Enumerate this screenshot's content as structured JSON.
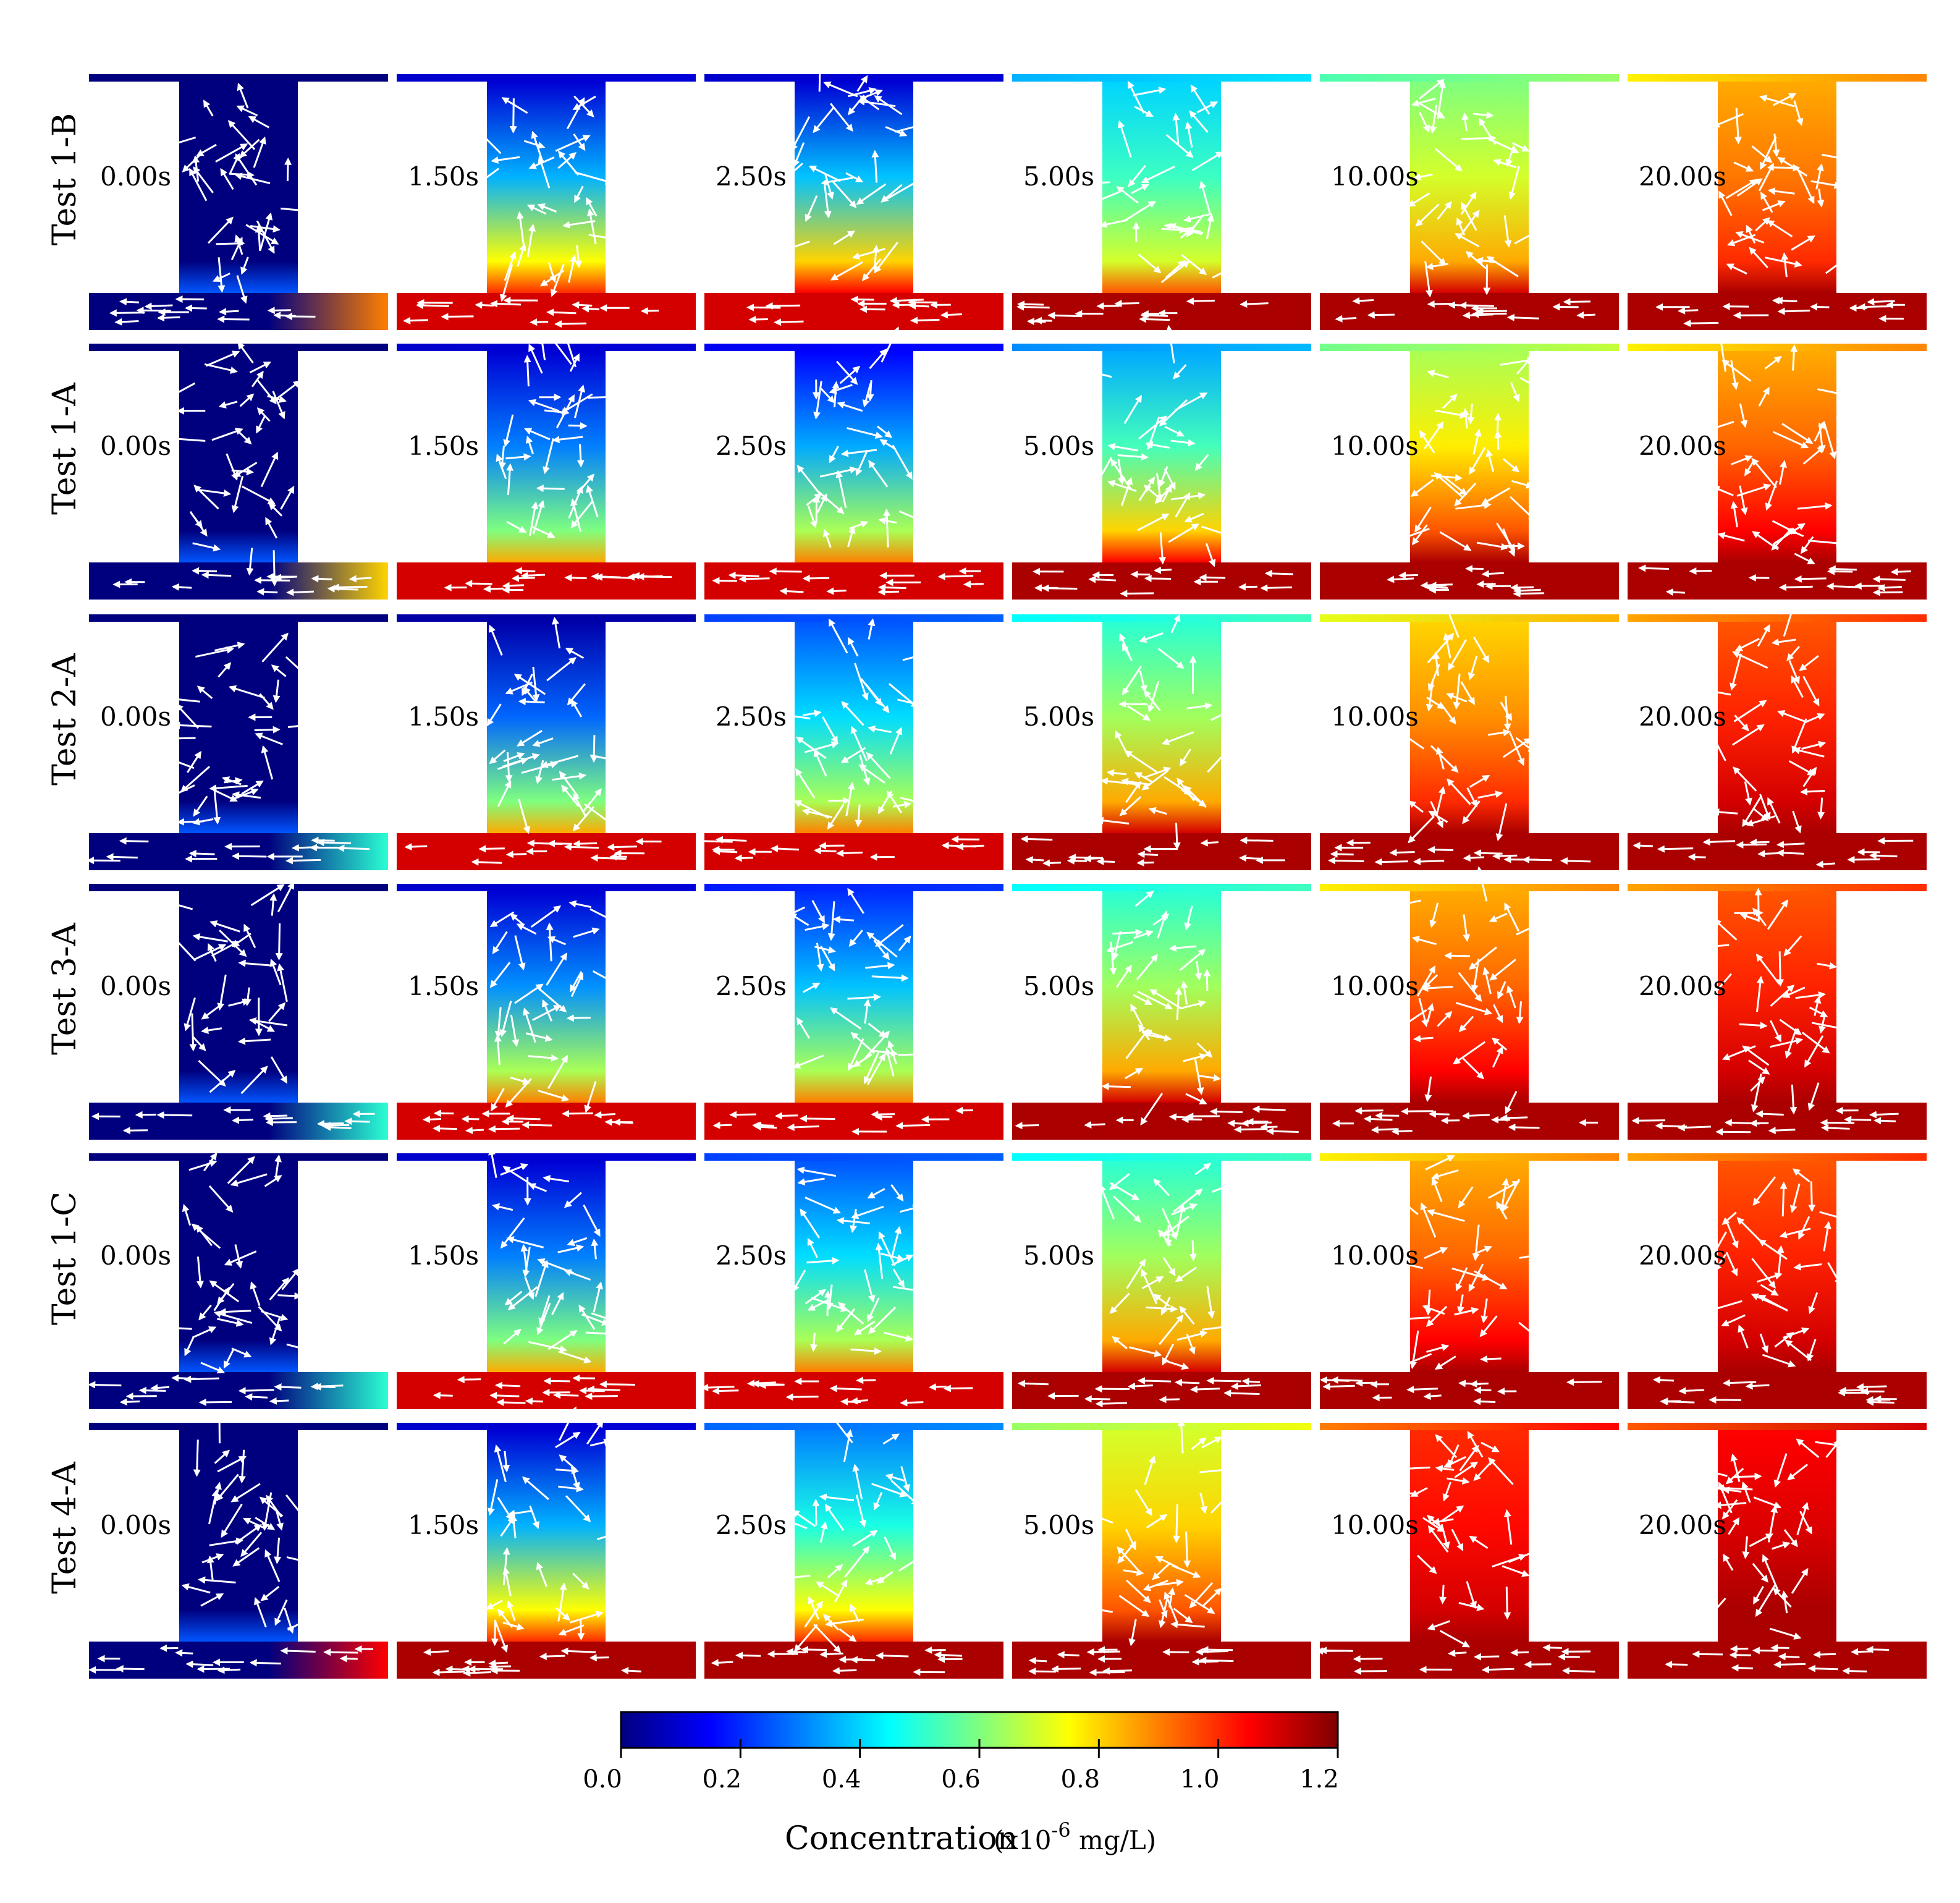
{
  "rows": [
    {
      "label": "Test 1-B",
      "key": "t1b"
    },
    {
      "label": "Test 1-A",
      "key": "t1a"
    },
    {
      "label": "Test 2-A",
      "key": "t2a"
    },
    {
      "label": "Test 3-A",
      "key": "t3a"
    },
    {
      "label": "Test 1-C",
      "key": "t1c"
    },
    {
      "label": "Test 4-A",
      "key": "t4a"
    }
  ],
  "times": [
    "0.00s",
    "1.50s",
    "2.50s",
    "5.00s",
    "10.00s",
    "20.00s"
  ],
  "concentration_fields": {
    "description_units": "normalized concentration 0-1.2 (x10^-6 mg/L)",
    "t1b": [
      {
        "cavity_bottom": 0.0,
        "cavity_top": 0.0,
        "channel": 0.0,
        "channel_inlet": 0.9
      },
      {
        "cavity_bottom": 0.75,
        "cavity_top": 0.1,
        "channel": 1.1,
        "channel_inlet": 1.1
      },
      {
        "cavity_bottom": 0.8,
        "cavity_top": 0.1,
        "channel": 1.1,
        "channel_inlet": 1.1
      },
      {
        "cavity_bottom": 0.7,
        "cavity_top": 0.4,
        "channel": 1.15,
        "channel_inlet": 1.15
      },
      {
        "cavity_bottom": 0.85,
        "cavity_top": 0.6,
        "channel": 1.15,
        "channel_inlet": 1.15
      },
      {
        "cavity_bottom": 1.0,
        "cavity_top": 0.85,
        "channel": 1.15,
        "channel_inlet": 1.15
      }
    ],
    "t1a": [
      {
        "cavity_bottom": 0.0,
        "cavity_top": 0.0,
        "channel": 0.0,
        "channel_inlet": 0.8
      },
      {
        "cavity_bottom": 0.6,
        "cavity_top": 0.1,
        "channel": 1.1,
        "channel_inlet": 1.1
      },
      {
        "cavity_bottom": 0.65,
        "cavity_top": 0.15,
        "channel": 1.1,
        "channel_inlet": 1.1
      },
      {
        "cavity_bottom": 0.8,
        "cavity_top": 0.35,
        "channel": 1.15,
        "channel_inlet": 1.15
      },
      {
        "cavity_bottom": 0.95,
        "cavity_top": 0.65,
        "channel": 1.15,
        "channel_inlet": 1.15
      },
      {
        "cavity_bottom": 1.05,
        "cavity_top": 0.85,
        "channel": 1.15,
        "channel_inlet": 1.15
      }
    ],
    "t2a": [
      {
        "cavity_bottom": 0.0,
        "cavity_top": 0.0,
        "channel": 0.0,
        "channel_inlet": 0.5
      },
      {
        "cavity_bottom": 0.6,
        "cavity_top": 0.05,
        "channel": 1.1,
        "channel_inlet": 1.1
      },
      {
        "cavity_bottom": 0.65,
        "cavity_top": 0.25,
        "channel": 1.1,
        "channel_inlet": 1.1
      },
      {
        "cavity_bottom": 0.85,
        "cavity_top": 0.5,
        "channel": 1.15,
        "channel_inlet": 1.15
      },
      {
        "cavity_bottom": 1.0,
        "cavity_top": 0.8,
        "channel": 1.15,
        "channel_inlet": 1.15
      },
      {
        "cavity_bottom": 1.1,
        "cavity_top": 0.95,
        "channel": 1.15,
        "channel_inlet": 1.15
      }
    ],
    "t3a": [
      {
        "cavity_bottom": 0.0,
        "cavity_top": 0.0,
        "channel": 0.0,
        "channel_inlet": 0.5
      },
      {
        "cavity_bottom": 0.65,
        "cavity_top": 0.1,
        "channel": 1.1,
        "channel_inlet": 1.1
      },
      {
        "cavity_bottom": 0.65,
        "cavity_top": 0.2,
        "channel": 1.1,
        "channel_inlet": 1.1
      },
      {
        "cavity_bottom": 0.85,
        "cavity_top": 0.5,
        "channel": 1.15,
        "channel_inlet": 1.15
      },
      {
        "cavity_bottom": 1.05,
        "cavity_top": 0.85,
        "channel": 1.15,
        "channel_inlet": 1.15
      },
      {
        "cavity_bottom": 1.1,
        "cavity_top": 0.95,
        "channel": 1.15,
        "channel_inlet": 1.15
      }
    ],
    "t1c": [
      {
        "cavity_bottom": 0.0,
        "cavity_top": 0.0,
        "channel": 0.0,
        "channel_inlet": 0.5
      },
      {
        "cavity_bottom": 0.6,
        "cavity_top": 0.1,
        "channel": 1.1,
        "channel_inlet": 1.1
      },
      {
        "cavity_bottom": 0.65,
        "cavity_top": 0.25,
        "channel": 1.1,
        "channel_inlet": 1.1
      },
      {
        "cavity_bottom": 0.85,
        "cavity_top": 0.5,
        "channel": 1.15,
        "channel_inlet": 1.15
      },
      {
        "cavity_bottom": 1.05,
        "cavity_top": 0.85,
        "channel": 1.15,
        "channel_inlet": 1.15
      },
      {
        "cavity_bottom": 1.1,
        "cavity_top": 0.95,
        "channel": 1.15,
        "channel_inlet": 1.15
      }
    ],
    "t4a": [
      {
        "cavity_bottom": 0.0,
        "cavity_top": 0.0,
        "channel": 0.0,
        "channel_inlet": 1.05
      },
      {
        "cavity_bottom": 0.75,
        "cavity_top": 0.1,
        "channel": 1.15,
        "channel_inlet": 1.15
      },
      {
        "cavity_bottom": 0.75,
        "cavity_top": 0.3,
        "channel": 1.15,
        "channel_inlet": 1.15
      },
      {
        "cavity_bottom": 0.95,
        "cavity_top": 0.7,
        "channel": 1.15,
        "channel_inlet": 1.15
      },
      {
        "cavity_bottom": 1.1,
        "cavity_top": 1.0,
        "channel": 1.15,
        "channel_inlet": 1.15
      },
      {
        "cavity_bottom": 1.15,
        "cavity_top": 1.05,
        "channel": 1.15,
        "channel_inlet": 1.15
      }
    ]
  },
  "colorbar": {
    "ticks": [
      "0.0",
      "0.2",
      "0.4",
      "0.6",
      "0.8",
      "1.0",
      "1.2"
    ],
    "title": "Concentration",
    "unit_prefix": "(x10",
    "unit_exponent": "-6",
    "unit_suffix": " mg/L)",
    "colormap": [
      "#00007f",
      "#0000ff",
      "#007fff",
      "#00ffff",
      "#7fff7f",
      "#ffff00",
      "#ff7f00",
      "#ff0000",
      "#7f0000"
    ]
  }
}
